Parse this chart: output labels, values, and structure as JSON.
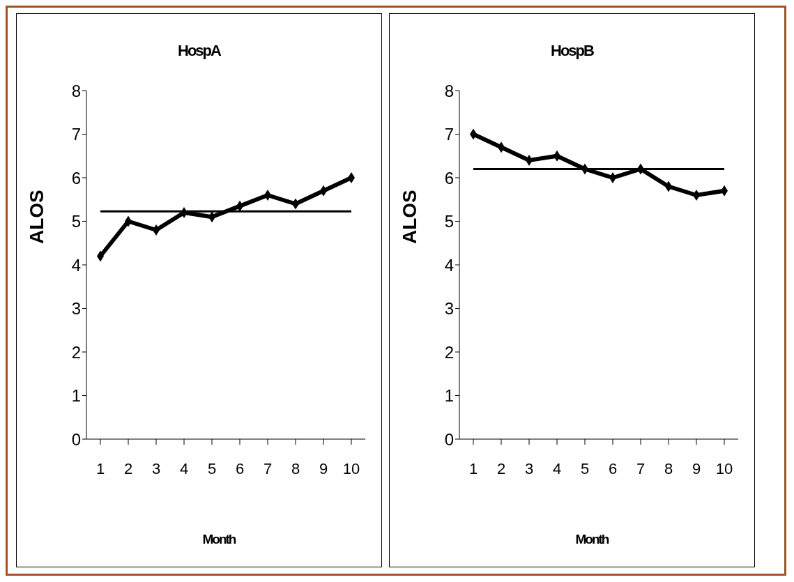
{
  "chart_data": [
    {
      "type": "line",
      "title": "HospA",
      "xlabel": "Month",
      "ylabel": "ALOS",
      "categories": [
        "1",
        "2",
        "3",
        "4",
        "5",
        "6",
        "7",
        "8",
        "9",
        "10"
      ],
      "series": [
        {
          "color": "#000000",
          "values": [
            4.2,
            5.0,
            4.8,
            5.2,
            5.1,
            5.35,
            5.6,
            5.4,
            5.7,
            6.0
          ]
        }
      ],
      "ylim": [
        0,
        8
      ],
      "yticks": [
        0,
        1,
        2,
        3,
        4,
        5,
        6,
        7,
        8
      ],
      "grid": false,
      "legend": false,
      "marker": "diamond",
      "line_style": "solid",
      "ref_lines": [
        {
          "axis": "y",
          "value": 5.23,
          "color": "#000000"
        }
      ]
    },
    {
      "type": "line",
      "title": "HospB",
      "xlabel": "Month",
      "ylabel": "ALOS",
      "categories": [
        "1",
        "2",
        "3",
        "4",
        "5",
        "6",
        "7",
        "8",
        "9",
        "10"
      ],
      "series": [
        {
          "color": "#000000",
          "values": [
            7.0,
            6.7,
            6.4,
            6.5,
            6.2,
            6.0,
            6.2,
            5.8,
            5.6,
            5.7
          ]
        }
      ],
      "ylim": [
        0,
        8
      ],
      "yticks": [
        0,
        1,
        2,
        3,
        4,
        5,
        6,
        7,
        8
      ],
      "grid": false,
      "legend": false,
      "marker": "diamond",
      "line_style": "solid",
      "ref_lines": [
        {
          "axis": "y",
          "value": 6.2,
          "color": "#000000"
        }
      ]
    }
  ]
}
